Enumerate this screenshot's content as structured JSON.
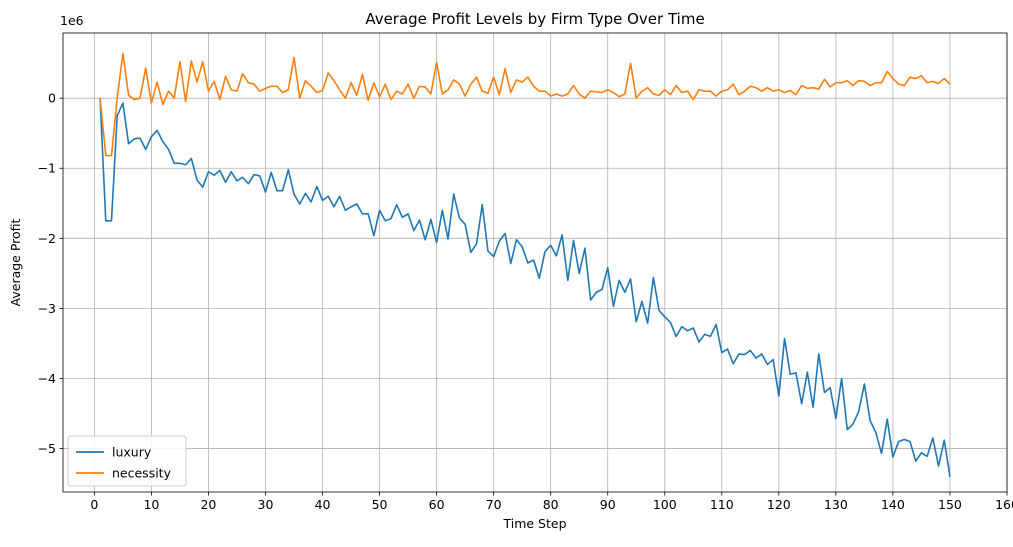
{
  "chart_data": {
    "type": "line",
    "title": "Average Profit Levels by Firm Type Over Time",
    "xlabel": "Time Step",
    "ylabel": "Average Profit",
    "y_offset_text": "1e6",
    "y_scale_note": "values in units of 1e6",
    "xlim": [
      -5.5,
      160
    ],
    "ylim": [
      -5.62,
      0.93
    ],
    "xticks": [
      0,
      10,
      20,
      30,
      40,
      50,
      60,
      70,
      80,
      90,
      100,
      110,
      120,
      130,
      140,
      150,
      160
    ],
    "xtick_labels": [
      "0",
      "10",
      "20",
      "30",
      "40",
      "50",
      "60",
      "70",
      "80",
      "90",
      "100",
      "110",
      "120",
      "130",
      "140",
      "150",
      "160"
    ],
    "yticks": [
      -5,
      -4,
      -3,
      -2,
      -1,
      0
    ],
    "ytick_labels": [
      "−5",
      "−4",
      "−3",
      "−2",
      "−1",
      "0"
    ],
    "grid": true,
    "legend_position": "lower-left",
    "x_start": 1,
    "series": [
      {
        "name": "luxury",
        "color": "#1f77b4",
        "values": [
          0,
          -1.75,
          -1.75,
          -0.25,
          -0.07,
          -0.65,
          -0.58,
          -0.57,
          -0.73,
          -0.55,
          -0.46,
          -0.62,
          -0.73,
          -0.93,
          -0.93,
          -0.95,
          -0.86,
          -1.17,
          -1.27,
          -1.05,
          -1.1,
          -1.03,
          -1.2,
          -1.05,
          -1.18,
          -1.13,
          -1.22,
          -1.09,
          -1.11,
          -1.34,
          -1.06,
          -1.32,
          -1.32,
          -1.02,
          -1.37,
          -1.51,
          -1.36,
          -1.48,
          -1.26,
          -1.46,
          -1.4,
          -1.55,
          -1.4,
          -1.6,
          -1.55,
          -1.51,
          -1.65,
          -1.65,
          -1.96,
          -1.6,
          -1.75,
          -1.72,
          -1.52,
          -1.7,
          -1.65,
          -1.89,
          -1.74,
          -2.02,
          -1.73,
          -2.06,
          -1.6,
          -2.01,
          -1.37,
          -1.71,
          -1.8,
          -2.2,
          -2.08,
          -1.52,
          -2.18,
          -2.26,
          -2.04,
          -1.93,
          -2.36,
          -2.02,
          -2.12,
          -2.35,
          -2.31,
          -2.57,
          -2.19,
          -2.1,
          -2.25,
          -1.95,
          -2.6,
          -2.03,
          -2.5,
          -2.14,
          -2.88,
          -2.77,
          -2.73,
          -2.42,
          -2.97,
          -2.6,
          -2.77,
          -2.58,
          -3.19,
          -2.9,
          -3.21,
          -2.56,
          -3.03,
          -3.12,
          -3.2,
          -3.4,
          -3.26,
          -3.32,
          -3.28,
          -3.48,
          -3.37,
          -3.4,
          -3.23,
          -3.63,
          -3.58,
          -3.79,
          -3.65,
          -3.66,
          -3.6,
          -3.71,
          -3.65,
          -3.8,
          -3.73,
          -4.25,
          -3.43,
          -3.94,
          -3.92,
          -4.36,
          -3.91,
          -4.41,
          -3.65,
          -4.2,
          -4.13,
          -4.57,
          -4.0,
          -4.73,
          -4.65,
          -4.47,
          -4.08,
          -4.6,
          -4.77,
          -5.07,
          -4.58,
          -5.12,
          -4.9,
          -4.87,
          -4.9,
          -5.18,
          -5.06,
          -5.11,
          -4.85,
          -5.25,
          -4.88,
          -5.4
        ]
      },
      {
        "name": "necessity",
        "color": "#ff7f0e",
        "values": [
          0,
          -0.82,
          -0.82,
          0.0,
          0.64,
          0.04,
          -0.02,
          0.0,
          0.43,
          -0.07,
          0.23,
          -0.09,
          0.1,
          0.0,
          0.52,
          -0.05,
          0.53,
          0.23,
          0.52,
          0.1,
          0.24,
          -0.02,
          0.31,
          0.12,
          0.1,
          0.35,
          0.22,
          0.2,
          0.1,
          0.14,
          0.17,
          0.17,
          0.08,
          0.12,
          0.58,
          0.0,
          0.25,
          0.17,
          0.08,
          0.11,
          0.36,
          0.25,
          0.12,
          0.0,
          0.22,
          0.04,
          0.34,
          -0.03,
          0.22,
          0.02,
          0.2,
          -0.02,
          0.1,
          0.06,
          0.2,
          0.0,
          0.17,
          0.16,
          0.06,
          0.51,
          0.06,
          0.12,
          0.26,
          0.2,
          0.03,
          0.2,
          0.3,
          0.1,
          0.07,
          0.3,
          0.05,
          0.42,
          0.08,
          0.26,
          0.23,
          0.3,
          0.17,
          0.1,
          0.1,
          0.03,
          0.06,
          0.03,
          0.06,
          0.18,
          0.06,
          0.0,
          0.1,
          0.09,
          0.08,
          0.12,
          0.08,
          0.02,
          0.06,
          0.5,
          0.0,
          0.1,
          0.15,
          0.06,
          0.04,
          0.12,
          0.05,
          0.18,
          0.08,
          0.1,
          -0.02,
          0.12,
          0.1,
          0.1,
          0.03,
          0.1,
          0.12,
          0.2,
          0.05,
          0.1,
          0.17,
          0.15,
          0.1,
          0.15,
          0.1,
          0.12,
          0.08,
          0.11,
          0.05,
          0.18,
          0.14,
          0.15,
          0.13,
          0.27,
          0.16,
          0.22,
          0.22,
          0.25,
          0.18,
          0.25,
          0.24,
          0.18,
          0.22,
          0.22,
          0.38,
          0.28,
          0.2,
          0.18,
          0.3,
          0.28,
          0.32,
          0.22,
          0.24,
          0.21,
          0.28,
          0.2
        ]
      }
    ]
  }
}
